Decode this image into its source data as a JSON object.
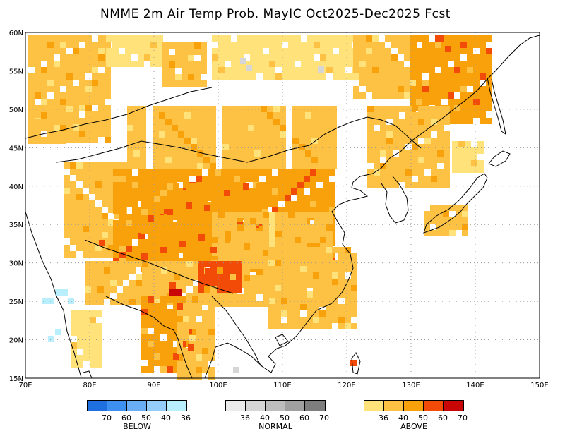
{
  "title": "NMME 2m Air Temp Prob. MayIC  Oct2025-Dec2025 Fcst",
  "map": {
    "lat_labels": [
      "60N",
      "55N",
      "50N",
      "45N",
      "40N",
      "35N",
      "30N",
      "25N",
      "20N",
      "15N"
    ],
    "lon_labels": [
      "70E",
      "80E",
      "90E",
      "100E",
      "110E",
      "120E",
      "130E",
      "140E",
      "150E"
    ],
    "grid": "dotted",
    "land_color": "#ffffff",
    "coastline_color": "#000000"
  },
  "legend": {
    "below": {
      "label": "BELOW",
      "ticks": [
        "70",
        "60",
        "50",
        "40",
        "36"
      ],
      "colors": [
        "#1e6fe0",
        "#3d8ff0",
        "#6aaef5",
        "#94cdfa",
        "#b9effc"
      ]
    },
    "normal": {
      "label": "NORMAL",
      "ticks": [
        "36",
        "40",
        "50",
        "60",
        "70"
      ],
      "colors": [
        "#ebebeb",
        "#d6d6d6",
        "#bdbdbd",
        "#a0a0a0",
        "#7e7e7e"
      ]
    },
    "above": {
      "label": "ABOVE",
      "ticks": [
        "36",
        "40",
        "50",
        "60",
        "70"
      ],
      "colors": [
        "#ffe27a",
        "#fdc244",
        "#f9a10b",
        "#f24a07",
        "#c80606"
      ]
    }
  }
}
